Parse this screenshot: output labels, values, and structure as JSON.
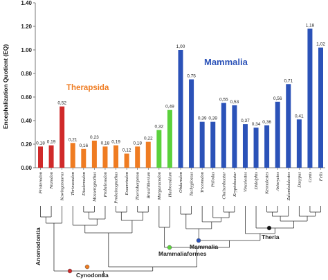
{
  "chart_data": {
    "type": "bar",
    "ylabel": "Encephalization Quotient (EQ)",
    "ylim": [
      0,
      1.4
    ],
    "yticks": [
      "0.00",
      "0.20",
      "0.40",
      "0.60",
      "0.80",
      "1.00",
      "1.20",
      "1.40"
    ],
    "categories": [
      "Pristerodon",
      "Niaiodon",
      "Kawingasaurus",
      "Thrinaxodon",
      "Diademodon",
      "Massetognathus",
      "Probelesodon",
      "Probainognathus",
      "Exaeretodon",
      "Therioherpeton",
      "Brasilitherium",
      "Morganucodon",
      "Hadrocodium",
      "Ohdurodon",
      "Tachyglossus",
      "Triconodon",
      "Ptilodus",
      "Chulsanbaatar",
      "Kryptobaatar",
      "Vincelestes",
      "Didelphis",
      "Kennalestes",
      "Asioryctes",
      "Zalambdalestes",
      "Dasypus",
      "Canis",
      "Felis"
    ],
    "values": [
      0.18,
      0.19,
      0.52,
      0.21,
      0.16,
      0.23,
      0.18,
      0.19,
      0.12,
      0.18,
      0.22,
      0.32,
      0.49,
      1.0,
      0.75,
      0.39,
      0.39,
      0.55,
      0.53,
      0.37,
      0.34,
      0.36,
      0.56,
      0.71,
      0.41,
      1.18,
      1.02
    ],
    "value_labels": [
      "0,18",
      "0,19",
      "0,52",
      "0,21",
      "0,16",
      "0,23",
      "0,18",
      "0,19",
      "0,12",
      "0,18",
      "0,22",
      "0,32",
      "0,49",
      "1,00",
      "0,75",
      "0,39",
      "0,39",
      "0,55",
      "0,53",
      "0,37",
      "0,34",
      "0,36",
      "0,56",
      "0,71",
      "0,41",
      "1,18",
      "1,02"
    ],
    "colors": [
      "#d02a2a",
      "#d02a2a",
      "#d02a2a",
      "#ef7c22",
      "#ef7c22",
      "#ef7c22",
      "#ef7c22",
      "#ef7c22",
      "#ef7c22",
      "#ef7c22",
      "#ef7c22",
      "#5bd13c",
      "#5bd13c",
      "#2b52b8",
      "#2b52b8",
      "#2b52b8",
      "#2b52b8",
      "#2b52b8",
      "#2b52b8",
      "#2b52b8",
      "#2b52b8",
      "#2b52b8",
      "#2b52b8",
      "#2b52b8",
      "#2b52b8",
      "#2b52b8",
      "#2b52b8"
    ],
    "group_labels": [
      {
        "text": "Therapsida",
        "color": "#ef7c22"
      },
      {
        "text": "Mammalia",
        "color": "#2b52b8"
      }
    ],
    "clade_labels": [
      "Anomodontia",
      "Cynodontia",
      "Mammaliaformes",
      "Mammalia",
      "Theria"
    ],
    "grid": false
  }
}
